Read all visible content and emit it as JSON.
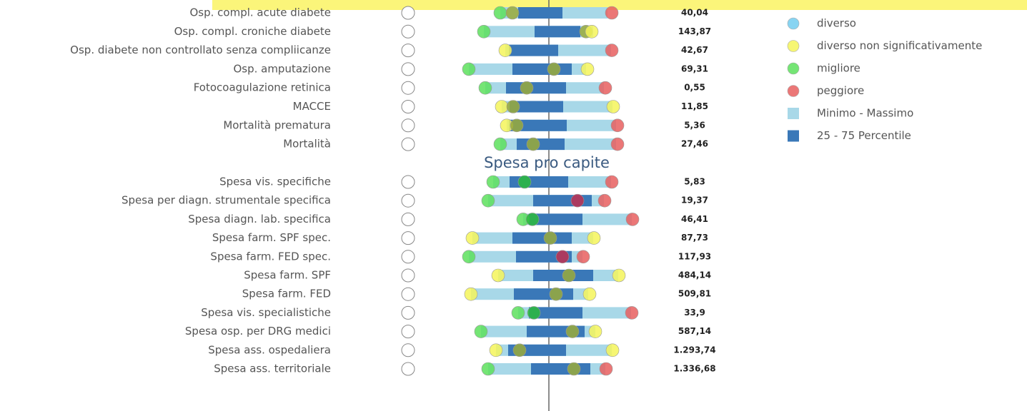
{
  "rows_top": [
    {
      "label": "Osp. compl. acute diabete",
      "value": "40,04"
    },
    {
      "label": "Osp. compl. croniche diabete",
      "value": "143,87"
    },
    {
      "label": "Osp. diabete non controllato senza compliicanze",
      "value": "42,67"
    },
    {
      "label": "Osp. amputazione",
      "value": "69,31"
    },
    {
      "label": "Fotocoagulazione retinica",
      "value": "0,55"
    },
    {
      "label": "MACCE",
      "value": "11,85"
    },
    {
      "label": "Mortalità prematura",
      "value": "5,36"
    },
    {
      "label": "Mortalità",
      "value": "27,46"
    }
  ],
  "section_title": "Spesa pro capite",
  "rows_bottom": [
    {
      "label": "Spesa vis. specifiche",
      "value": "5,83"
    },
    {
      "label": "Spesa per diagn. strumentale specifica",
      "value": "19,37"
    },
    {
      "label": "Spesa diagn. lab. specifica",
      "value": "46,41"
    },
    {
      "label": "Spesa farm. SPF spec.",
      "value": "87,73"
    },
    {
      "label": "Spesa farm. FED spec.",
      "value": "117,93"
    },
    {
      "label": "Spesa farm. SPF",
      "value": "484,14"
    },
    {
      "label": "Spesa farm. FED",
      "value": "509,81"
    },
    {
      "label": "Spesa vis. specialistiche",
      "value": "33,9"
    },
    {
      "label": "Spesa osp. per DRG medici",
      "value": "587,14"
    },
    {
      "label": "Spesa ass. ospedaliera",
      "value": "1.293,74"
    },
    {
      "label": "Spesa ass. territoriale",
      "value": "1.336,68"
    }
  ],
  "legend": [
    {
      "label": "diverso",
      "color": "#73cdf0",
      "shape": "circle"
    },
    {
      "label": "diverso non significativamente",
      "color": "#f5f55a",
      "shape": "circle"
    },
    {
      "label": "migliore",
      "color": "#5de05d",
      "shape": "circle"
    },
    {
      "label": "peggiore",
      "color": "#e85f5f",
      "shape": "circle"
    },
    {
      "label": "Minimo - Massimo",
      "color": "#a8d8e8",
      "shape": "square"
    },
    {
      "label": "25 - 75 Percentile",
      "color": "#3a78b8",
      "shape": "square"
    }
  ]
}
